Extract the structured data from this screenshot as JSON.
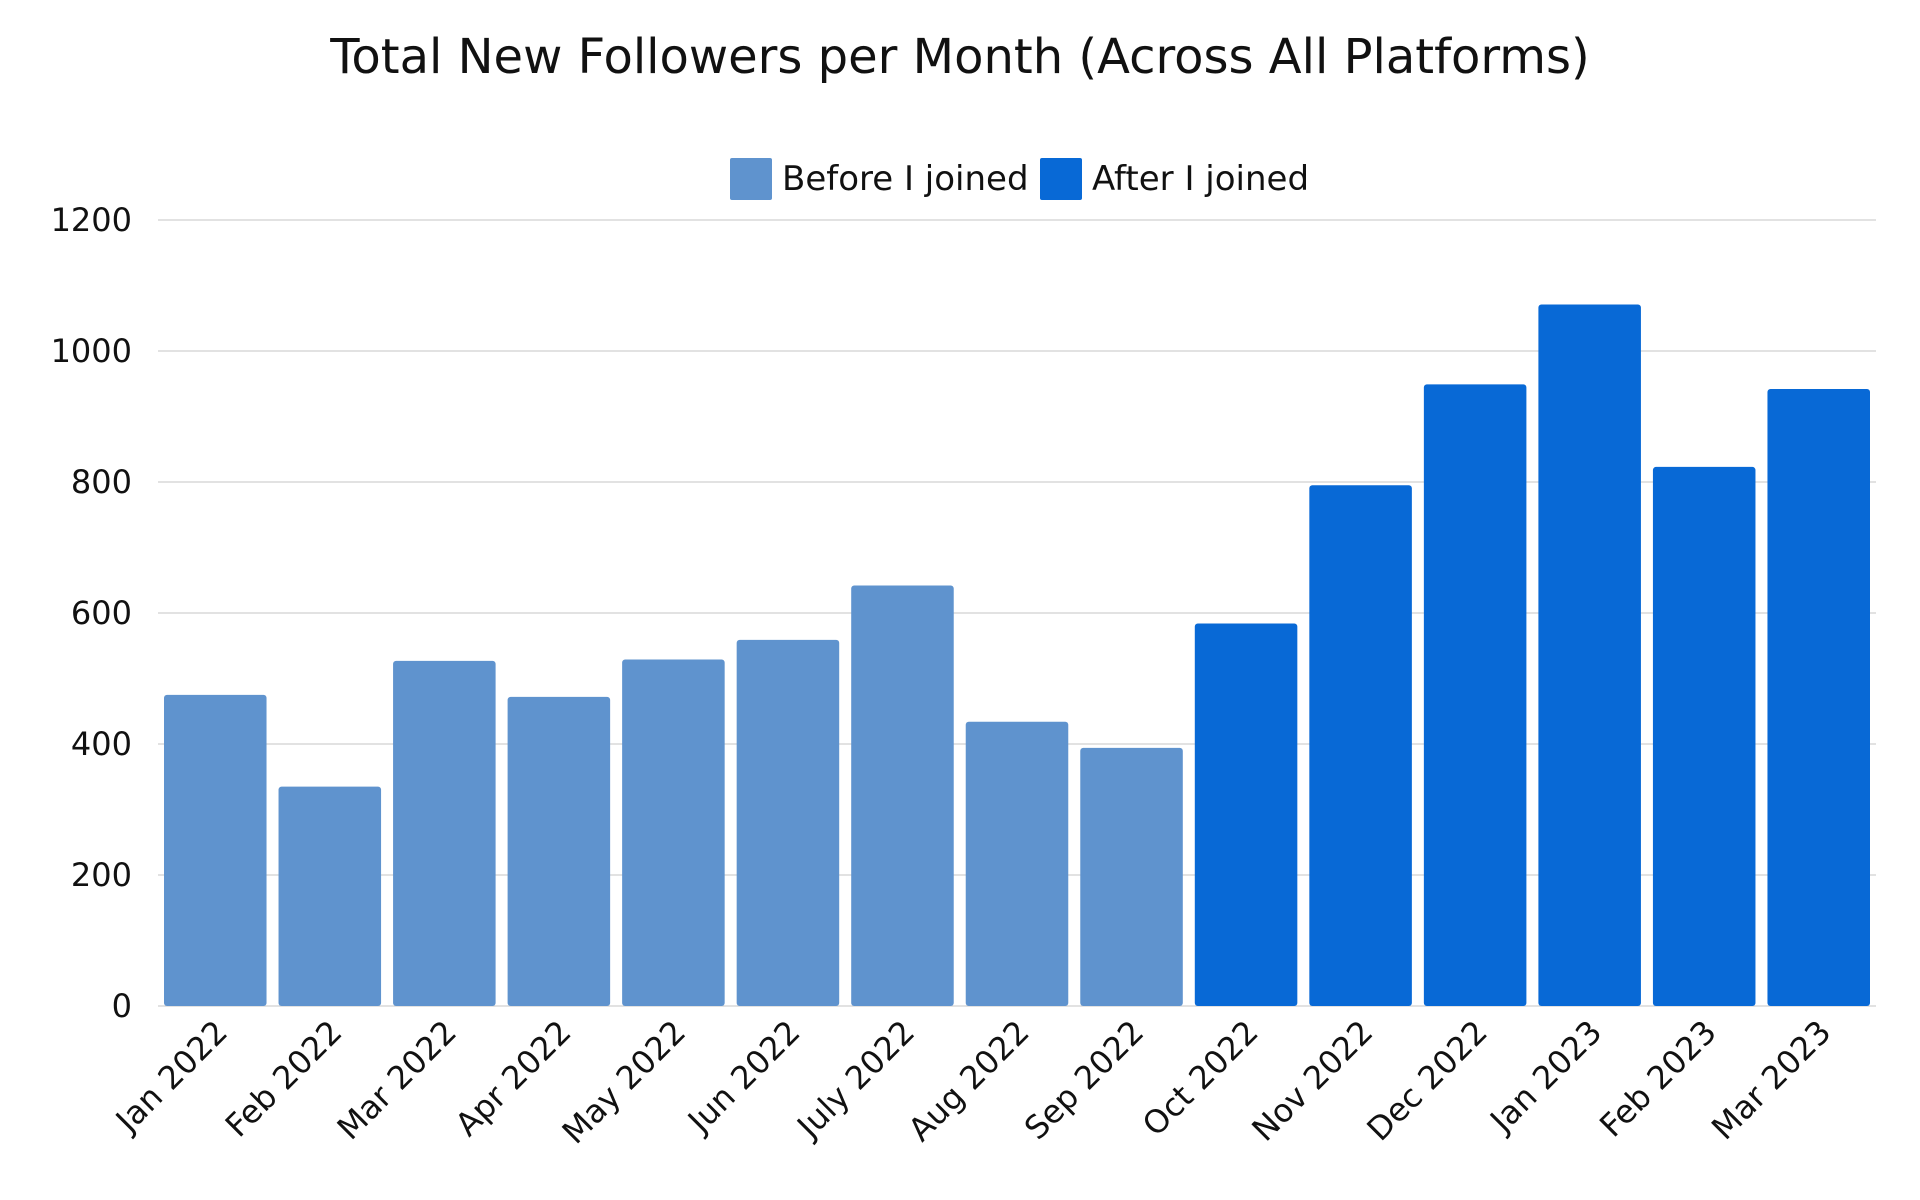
{
  "chart_data": {
    "type": "bar",
    "title": "Total New Followers per Month (Across All Platforms)",
    "xlabel": "",
    "ylabel": "",
    "ylim": [
      0,
      1200
    ],
    "yticks": [
      "0",
      "200",
      "400",
      "600",
      "800",
      "1000",
      "1200"
    ],
    "grid": true,
    "legend_position": "top-center",
    "categories": [
      "Jan 2022",
      "Feb 2022",
      "Mar 2022",
      "Apr 2022",
      "May 2022",
      "Jun 2022",
      "July 2022",
      "Aug 2022",
      "Sep 2022",
      "Oct 2022",
      "Nov 2022",
      "Dec 2022",
      "Jan 2023",
      "Feb 2023",
      "Mar 2023"
    ],
    "values": [
      475,
      335,
      527,
      472,
      529,
      559,
      642,
      434,
      394,
      584,
      795,
      949,
      1071,
      823,
      942
    ],
    "series": [
      {
        "name": "Before I joined",
        "color": "#5f93ce",
        "months": [
          "Jan 2022",
          "Feb 2022",
          "Mar 2022",
          "Apr 2022",
          "May 2022",
          "Jun 2022",
          "July 2022",
          "Aug 2022",
          "Sep 2022"
        ]
      },
      {
        "name": "After I joined",
        "color": "#0869d6",
        "months": [
          "Oct 2022",
          "Nov 2022",
          "Dec 2022",
          "Jan 2023",
          "Feb 2023",
          "Mar 2023"
        ]
      }
    ]
  }
}
